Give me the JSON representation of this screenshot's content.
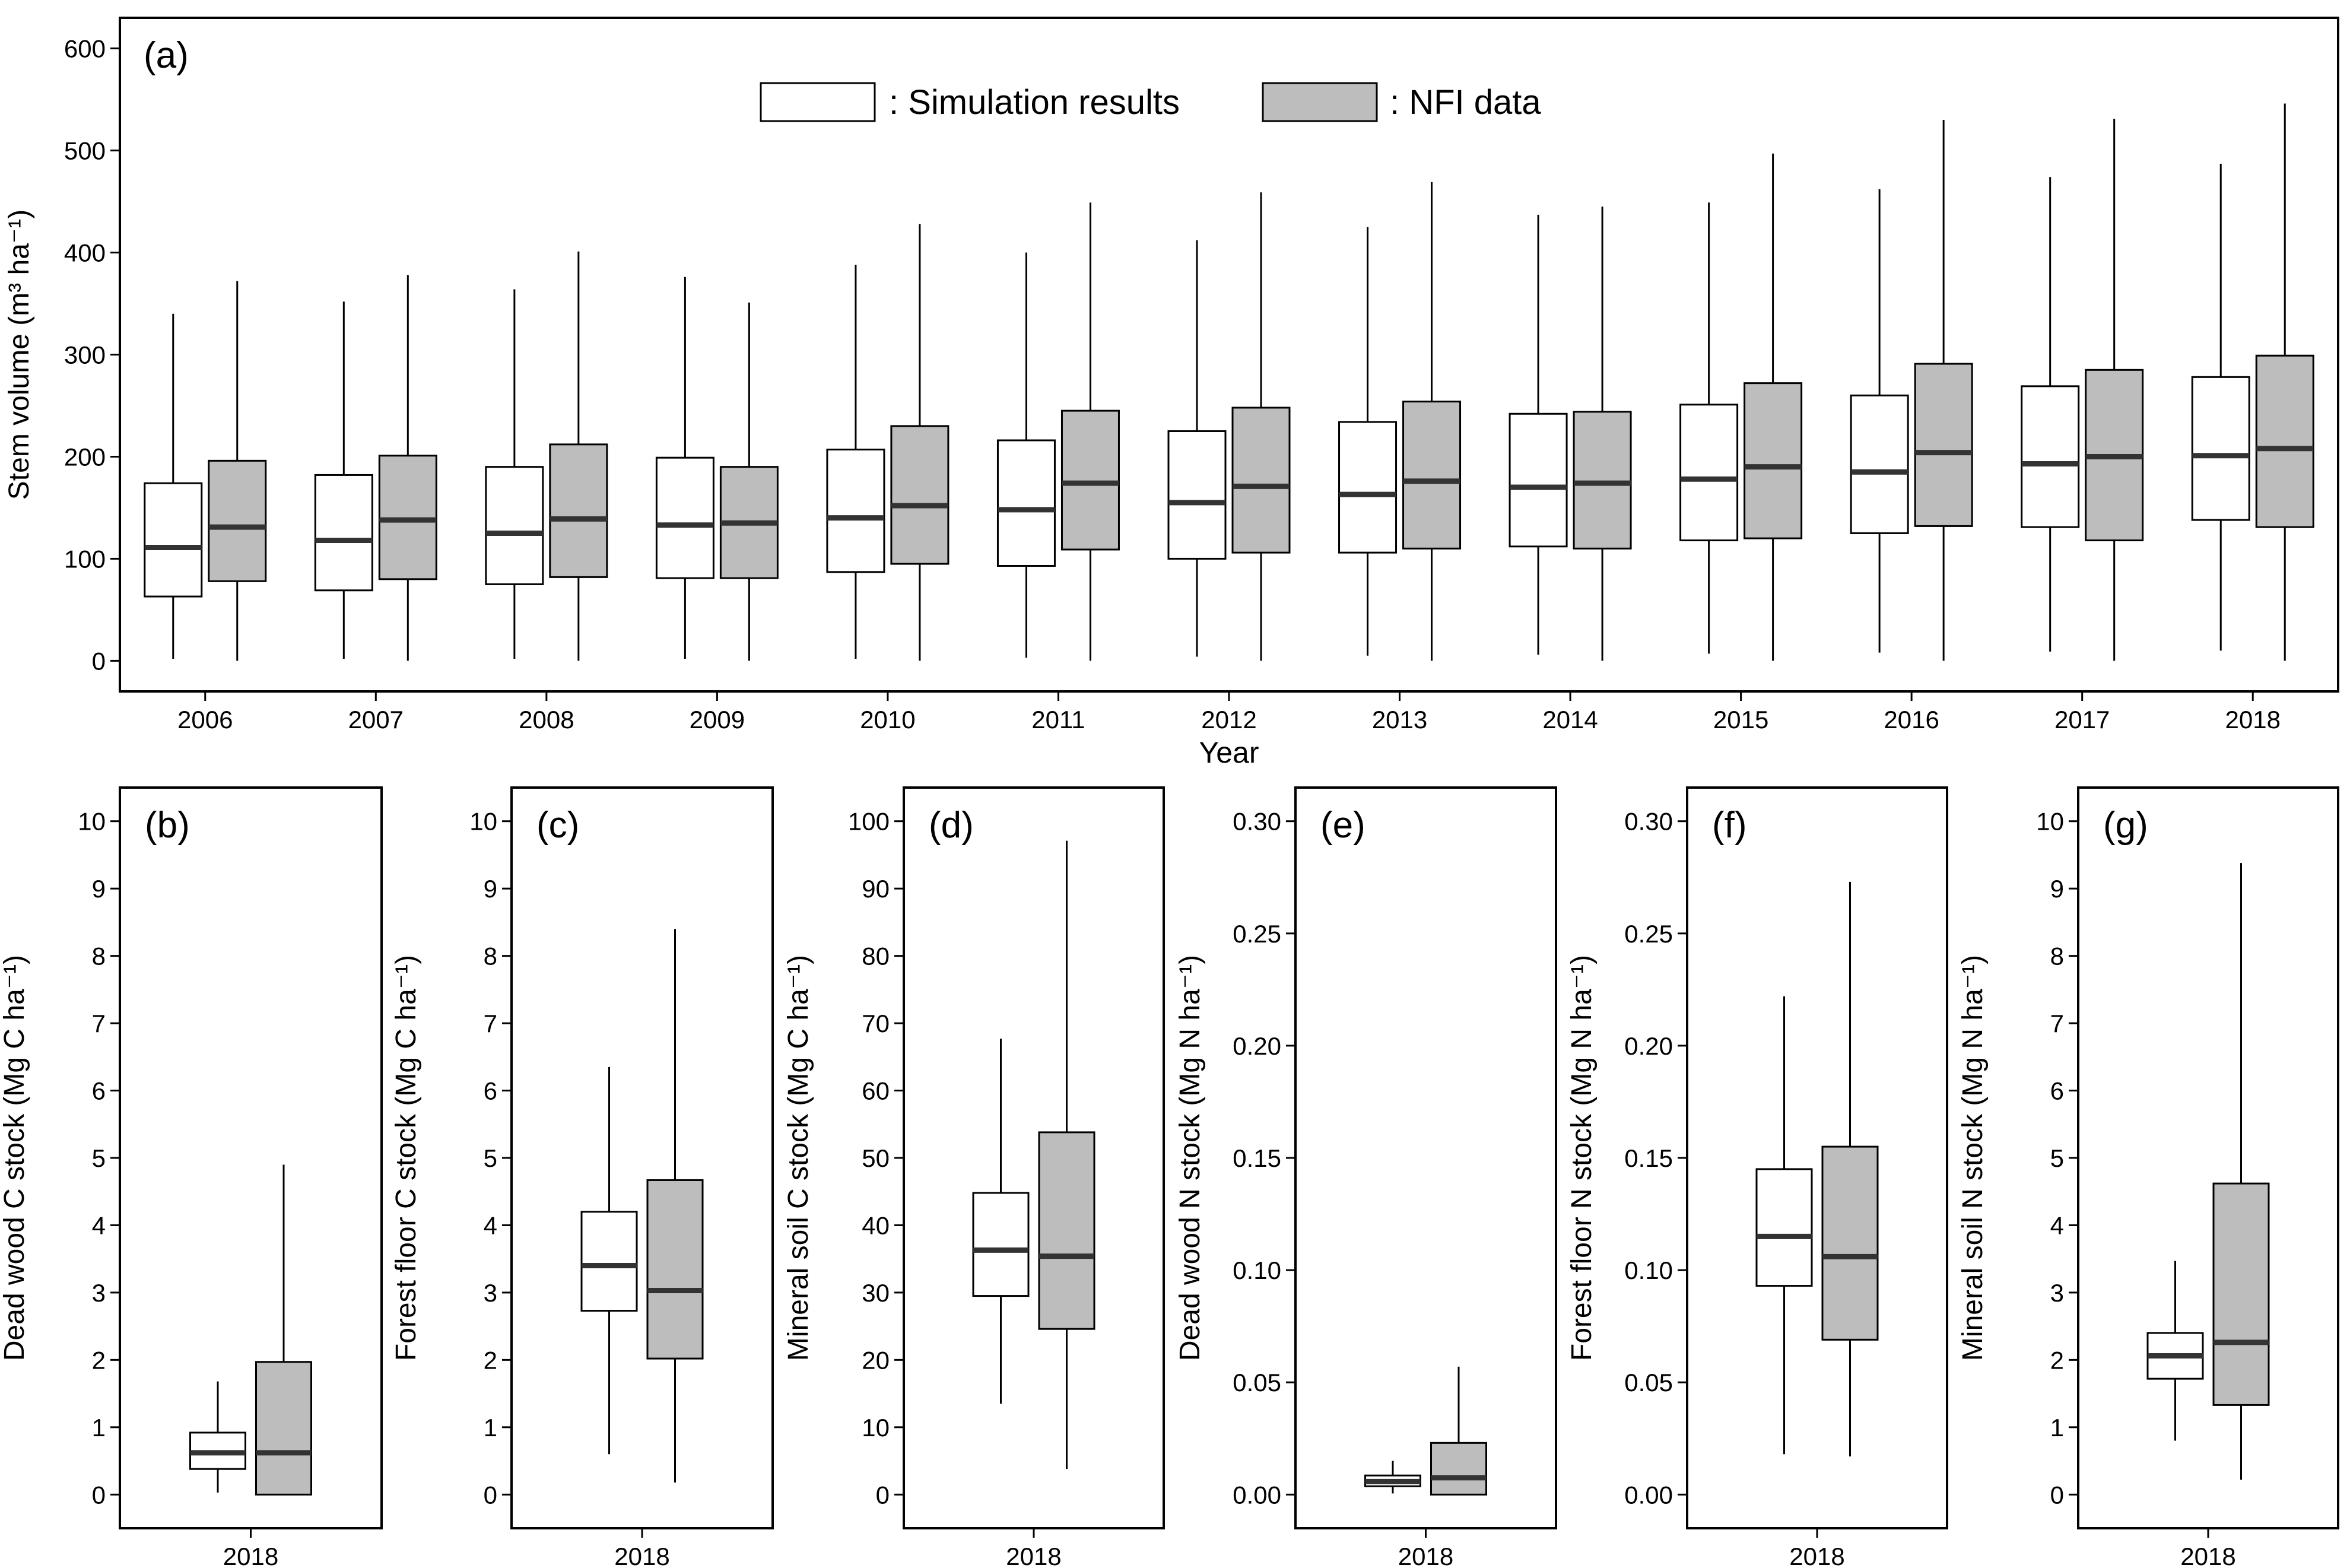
{
  "colors": {
    "sim_fill": "#ffffff",
    "nfi_fill": "#bdbdbd",
    "stroke": "#000000",
    "median": "#333333"
  },
  "legend": [
    {
      "text": ": Simulation results",
      "fill": "#ffffff"
    },
    {
      "text": ": NFI data",
      "fill": "#bdbdbd"
    }
  ],
  "chart_data": [
    {
      "panel": "(a)",
      "type": "box",
      "title": "(a)",
      "xlabel": "Year",
      "ylabel": "Stem volume (m³ ha⁻¹)",
      "ylim": [
        -30,
        630
      ],
      "yticks": [
        0,
        100,
        200,
        300,
        400,
        500,
        600
      ],
      "tick_labels": [
        "0",
        "100",
        "200",
        "300",
        "400",
        "500",
        "600"
      ],
      "categories": [
        "2006",
        "2007",
        "2008",
        "2009",
        "2010",
        "2011",
        "2012",
        "2013",
        "2014",
        "2015",
        "2016",
        "2017",
        "2018"
      ],
      "series": [
        {
          "name": "Simulation results",
          "boxes": [
            {
              "min": 2,
              "q1": 63,
              "median": 111,
              "q3": 174,
              "max": 340
            },
            {
              "min": 2,
              "q1": 69,
              "median": 118,
              "q3": 182,
              "max": 352
            },
            {
              "min": 2,
              "q1": 75,
              "median": 125,
              "q3": 190,
              "max": 364
            },
            {
              "min": 2,
              "q1": 81,
              "median": 133,
              "q3": 199,
              "max": 376
            },
            {
              "min": 2,
              "q1": 87,
              "median": 140,
              "q3": 207,
              "max": 388
            },
            {
              "min": 3,
              "q1": 93,
              "median": 148,
              "q3": 216,
              "max": 400
            },
            {
              "min": 4,
              "q1": 100,
              "median": 155,
              "q3": 225,
              "max": 412
            },
            {
              "min": 5,
              "q1": 106,
              "median": 163,
              "q3": 234,
              "max": 425
            },
            {
              "min": 6,
              "q1": 112,
              "median": 170,
              "q3": 242,
              "max": 437
            },
            {
              "min": 7,
              "q1": 118,
              "median": 178,
              "q3": 251,
              "max": 449
            },
            {
              "min": 8,
              "q1": 125,
              "median": 185,
              "q3": 260,
              "max": 462
            },
            {
              "min": 9,
              "q1": 131,
              "median": 193,
              "q3": 269,
              "max": 474
            },
            {
              "min": 10,
              "q1": 138,
              "median": 201,
              "q3": 278,
              "max": 487
            }
          ]
        },
        {
          "name": "NFI data",
          "boxes": [
            {
              "min": 0,
              "q1": 78,
              "median": 131,
              "q3": 196,
              "max": 372
            },
            {
              "min": 0,
              "q1": 80,
              "median": 138,
              "q3": 201,
              "max": 378
            },
            {
              "min": 0,
              "q1": 82,
              "median": 139,
              "q3": 212,
              "max": 401
            },
            {
              "min": 0,
              "q1": 81,
              "median": 135,
              "q3": 190,
              "max": 351
            },
            {
              "min": 0,
              "q1": 95,
              "median": 152,
              "q3": 230,
              "max": 428
            },
            {
              "min": 0,
              "q1": 109,
              "median": 174,
              "q3": 245,
              "max": 449
            },
            {
              "min": 0,
              "q1": 106,
              "median": 171,
              "q3": 248,
              "max": 459
            },
            {
              "min": 0,
              "q1": 110,
              "median": 176,
              "q3": 254,
              "max": 469
            },
            {
              "min": 0,
              "q1": 110,
              "median": 174,
              "q3": 244,
              "max": 445
            },
            {
              "min": 0,
              "q1": 120,
              "median": 190,
              "q3": 272,
              "max": 497
            },
            {
              "min": 0,
              "q1": 132,
              "median": 204,
              "q3": 291,
              "max": 530
            },
            {
              "min": 0,
              "q1": 118,
              "median": 200,
              "q3": 285,
              "max": 531
            },
            {
              "min": 0,
              "q1": 131,
              "median": 208,
              "q3": 299,
              "max": 546
            }
          ]
        }
      ]
    },
    {
      "panel": "(b)",
      "type": "box",
      "title": "(b)",
      "xlabel": "",
      "ylabel": "Dead wood C stock (Mg C ha⁻¹)",
      "ylim": [
        -0.5,
        10.5
      ],
      "yticks": [
        0,
        1,
        2,
        3,
        4,
        5,
        6,
        7,
        8,
        9,
        10
      ],
      "tick_labels": [
        "0",
        "1",
        "2",
        "3",
        "4",
        "5",
        "6",
        "7",
        "8",
        "9",
        "10"
      ],
      "categories": [
        "2018"
      ],
      "series": [
        {
          "name": "Simulation results",
          "boxes": [
            {
              "min": 0.03,
              "q1": 0.38,
              "median": 0.62,
              "q3": 0.92,
              "max": 1.68
            }
          ]
        },
        {
          "name": "NFI data",
          "boxes": [
            {
              "min": 0,
              "q1": 0,
              "median": 0.62,
              "q3": 1.97,
              "max": 4.9
            }
          ]
        }
      ]
    },
    {
      "panel": "(c)",
      "type": "box",
      "title": "(c)",
      "xlabel": "",
      "ylabel": "Forest floor C stock (Mg C ha⁻¹)",
      "ylim": [
        -0.5,
        10.5
      ],
      "yticks": [
        0,
        1,
        2,
        3,
        4,
        5,
        6,
        7,
        8,
        9,
        10
      ],
      "tick_labels": [
        "0",
        "1",
        "2",
        "3",
        "4",
        "5",
        "6",
        "7",
        "8",
        "9",
        "10"
      ],
      "categories": [
        "2018"
      ],
      "series": [
        {
          "name": "Simulation results",
          "boxes": [
            {
              "min": 0.6,
              "q1": 2.73,
              "median": 3.4,
              "q3": 4.2,
              "max": 6.35
            }
          ]
        },
        {
          "name": "NFI data",
          "boxes": [
            {
              "min": 0.18,
              "q1": 2.02,
              "median": 3.03,
              "q3": 4.67,
              "max": 8.4
            }
          ]
        }
      ]
    },
    {
      "panel": "(d)",
      "type": "box",
      "title": "(d)",
      "xlabel": "",
      "ylabel": "Mineral soil C stock (Mg C ha⁻¹)",
      "ylim": [
        -5,
        105
      ],
      "yticks": [
        0,
        10,
        20,
        30,
        40,
        50,
        60,
        70,
        80,
        90,
        100
      ],
      "tick_labels": [
        "0",
        "10",
        "20",
        "30",
        "40",
        "50",
        "60",
        "70",
        "80",
        "90",
        "100"
      ],
      "categories": [
        "2018"
      ],
      "series": [
        {
          "name": "Simulation results",
          "boxes": [
            {
              "min": 13.5,
              "q1": 29.5,
              "median": 36.3,
              "q3": 44.8,
              "max": 67.7
            }
          ]
        },
        {
          "name": "NFI data",
          "boxes": [
            {
              "min": 3.8,
              "q1": 24.6,
              "median": 35.4,
              "q3": 53.8,
              "max": 97.1
            }
          ]
        }
      ]
    },
    {
      "panel": "(e)",
      "type": "box",
      "title": "(e)",
      "xlabel": "",
      "ylabel": "Dead wood N stock (Mg N ha⁻¹)",
      "ylim": [
        -0.015,
        0.315
      ],
      "yticks": [
        0,
        0.05,
        0.1,
        0.15,
        0.2,
        0.25,
        0.3
      ],
      "tick_labels": [
        "0.00",
        "0.05",
        "0.10",
        "0.15",
        "0.20",
        "0.25",
        "0.30"
      ],
      "categories": [
        "2018"
      ],
      "series": [
        {
          "name": "Simulation results",
          "boxes": [
            {
              "min": 0.0005,
              "q1": 0.0037,
              "median": 0.0058,
              "q3": 0.0085,
              "max": 0.015
            }
          ]
        },
        {
          "name": "NFI data",
          "boxes": [
            {
              "min": 0,
              "q1": 0,
              "median": 0.0075,
              "q3": 0.023,
              "max": 0.057
            }
          ]
        }
      ]
    },
    {
      "panel": "(f)",
      "type": "box",
      "title": "(f)",
      "xlabel": "",
      "ylabel": "Forest floor N stock (Mg N ha⁻¹)",
      "ylim": [
        -0.015,
        0.315
      ],
      "yticks": [
        0,
        0.05,
        0.1,
        0.15,
        0.2,
        0.25,
        0.3
      ],
      "tick_labels": [
        "0.00",
        "0.05",
        "0.10",
        "0.15",
        "0.20",
        "0.25",
        "0.30"
      ],
      "categories": [
        "2018"
      ],
      "series": [
        {
          "name": "Simulation results",
          "boxes": [
            {
              "min": 0.018,
              "q1": 0.093,
              "median": 0.115,
              "q3": 0.145,
              "max": 0.222
            }
          ]
        },
        {
          "name": "NFI data",
          "boxes": [
            {
              "min": 0.017,
              "q1": 0.069,
              "median": 0.106,
              "q3": 0.155,
              "max": 0.273
            }
          ]
        }
      ]
    },
    {
      "panel": "(g)",
      "type": "box",
      "title": "(g)",
      "xlabel": "",
      "ylabel": "Mineral soil N stock (Mg N ha⁻¹)",
      "ylim": [
        -0.5,
        10.5
      ],
      "yticks": [
        0,
        1,
        2,
        3,
        4,
        5,
        6,
        7,
        8,
        9,
        10
      ],
      "tick_labels": [
        "0",
        "1",
        "2",
        "3",
        "4",
        "5",
        "6",
        "7",
        "8",
        "9",
        "10"
      ],
      "categories": [
        "2018"
      ],
      "series": [
        {
          "name": "Simulation results",
          "boxes": [
            {
              "min": 0.8,
              "q1": 1.72,
              "median": 2.06,
              "q3": 2.4,
              "max": 3.47
            }
          ]
        },
        {
          "name": "NFI data",
          "boxes": [
            {
              "min": 0.22,
              "q1": 1.33,
              "median": 2.26,
              "q3": 4.62,
              "max": 9.38
            }
          ]
        }
      ]
    }
  ]
}
